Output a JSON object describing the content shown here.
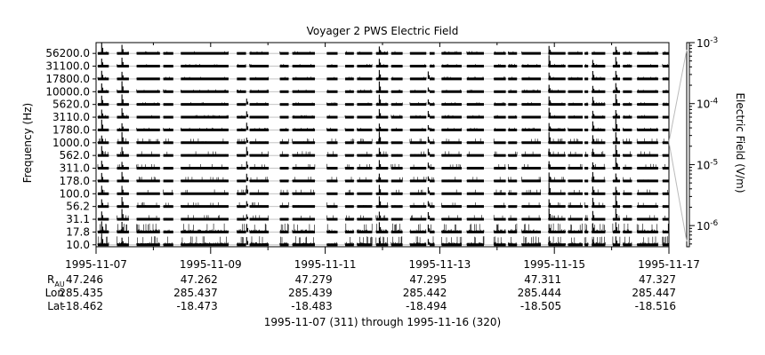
{
  "chart_data": {
    "type": "line",
    "title": "Voyager 2 PWS Electric Field",
    "ylabel": "Frequency (Hz)",
    "y2label": "Electric Field (V/m)",
    "channels": [
      "56200.0",
      "31100.0",
      "17800.0",
      "10000.0",
      "5620.0",
      "3110.0",
      "1780.0",
      "1000.0",
      "562.0",
      "311.0",
      "178.0",
      "100.0",
      "56.2",
      "31.1",
      "17.8",
      "10.0"
    ],
    "colorbar": {
      "scale": "log",
      "range": [
        4.5e-07,
        0.001
      ],
      "ticks": [
        {
          "value": 0.001,
          "mantissa": "10",
          "exponent": "-3"
        },
        {
          "value": 0.0001,
          "mantissa": "10",
          "exponent": "-4"
        },
        {
          "value": 1e-05,
          "mantissa": "10",
          "exponent": "-5"
        },
        {
          "value": 1e-06,
          "mantissa": "10",
          "exponent": "-6"
        }
      ]
    },
    "x_range": [
      "1995-11-07",
      "1995-11-17"
    ],
    "x_major_ticks": [
      "1995-11-07",
      "1995-11-09",
      "1995-11-11",
      "1995-11-13",
      "1995-11-15",
      "1995-11-17"
    ],
    "x_minor_ticks": [
      "1995-11-08",
      "1995-11-10",
      "1995-11-12",
      "1995-11-14",
      "1995-11-16"
    ],
    "ephemeris": {
      "labels": {
        "r_main": "R",
        "r_sub": "AU",
        "lon": "Lon",
        "lat": "Lat"
      },
      "rows": [
        {
          "date": "1995-11-07",
          "r": "47.246",
          "lon": "285.435",
          "lat": "-18.462"
        },
        {
          "date": "1995-11-09",
          "r": "47.262",
          "lon": "285.437",
          "lat": "-18.473"
        },
        {
          "date": "1995-11-11",
          "r": "47.279",
          "lon": "285.439",
          "lat": "-18.483"
        },
        {
          "date": "1995-11-13",
          "r": "47.295",
          "lon": "285.442",
          "lat": "-18.494"
        },
        {
          "date": "1995-11-15",
          "r": "47.311",
          "lon": "285.444",
          "lat": "-18.505"
        },
        {
          "date": "1995-11-17",
          "r": "47.327",
          "lon": "285.447",
          "lat": "-18.516"
        }
      ]
    },
    "footer": "1995-11-07 (311) through 1995-11-16 (320)",
    "coverage": [
      [
        "1995-11-07T00:45",
        "1995-11-07T05:20"
      ],
      [
        "1995-11-07T08:45",
        "1995-11-07T13:45"
      ],
      [
        "1995-11-07T17:00",
        "1995-11-08T02:45"
      ],
      [
        "1995-11-08T04:10",
        "1995-11-08T08:20"
      ],
      [
        "1995-11-08T11:30",
        "1995-11-09T07:30"
      ],
      [
        "1995-11-09T11:00",
        "1995-11-09T14:50"
      ],
      [
        "1995-11-09T16:20",
        "1995-11-10T00:20"
      ],
      [
        "1995-11-10T05:00",
        "1995-11-10T08:40"
      ],
      [
        "1995-11-10T10:15",
        "1995-11-10T19:40"
      ],
      [
        "1995-11-11T00:40",
        "1995-11-11T05:10"
      ],
      [
        "1995-11-11T08:20",
        "1995-11-11T12:00"
      ],
      [
        "1995-11-11T13:20",
        "1995-11-11T19:40"
      ],
      [
        "1995-11-11T21:20",
        "1995-11-12T02:20"
      ],
      [
        "1995-11-12T03:40",
        "1995-11-12T08:25"
      ],
      [
        "1995-11-12T11:30",
        "1995-11-12T18:20"
      ],
      [
        "1995-11-12T19:45",
        "1995-11-12T21:50"
      ],
      [
        "1995-11-13T00:45",
        "1995-11-13T09:10"
      ],
      [
        "1995-11-13T11:20",
        "1995-11-13T18:30"
      ],
      [
        "1995-11-13T22:40",
        "1995-11-14T03:40"
      ],
      [
        "1995-11-14T04:40",
        "1995-11-14T08:20"
      ],
      [
        "1995-11-14T10:20",
        "1995-11-14T18:20"
      ],
      [
        "1995-11-14T21:30",
        "1995-11-15T04:40"
      ],
      [
        "1995-11-15T05:45",
        "1995-11-15T11:50"
      ],
      [
        "1995-11-15T12:40",
        "1995-11-15T14:10"
      ],
      [
        "1995-11-15T15:40",
        "1995-11-15T21:20"
      ],
      [
        "1995-11-16T00:30",
        "1995-11-16T03:30"
      ],
      [
        "1995-11-16T04:45",
        "1995-11-16T08:30"
      ],
      [
        "1995-11-16T10:40",
        "1995-11-16T19:30"
      ],
      [
        "1995-11-16T21:20",
        "1995-11-17T00:00"
      ]
    ],
    "spikes": [
      {
        "t": "1995-11-07T02:20",
        "channels_above": 16,
        "amplitude": 0.9
      },
      {
        "t": "1995-11-07T10:50",
        "channels_above": 16,
        "amplitude": 0.9
      },
      {
        "t": "1995-11-09T15:05",
        "channels_above": 12,
        "amplitude": 0.7
      },
      {
        "t": "1995-11-11T22:40",
        "channels_above": 16,
        "amplitude": 0.9
      },
      {
        "t": "1995-11-12T19:10",
        "channels_above": 14,
        "amplitude": 0.6
      },
      {
        "t": "1995-11-14T21:45",
        "channels_above": 16,
        "amplitude": 0.9
      },
      {
        "t": "1995-11-15T16:05",
        "channels_above": 15,
        "amplitude": 0.7
      },
      {
        "t": "1995-11-16T01:45",
        "channels_above": 16,
        "amplitude": 0.9
      }
    ]
  }
}
